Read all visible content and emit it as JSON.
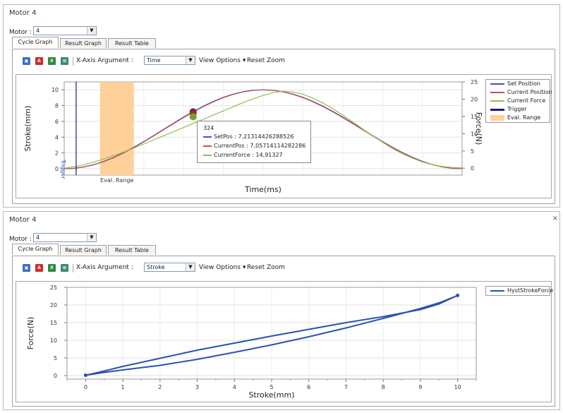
{
  "panel1": {
    "title": "Motor 4",
    "motor_label": "Motor :",
    "motor_value": "4",
    "tabs": [
      "Cycle Graph",
      "Result Graph",
      "Result Table"
    ],
    "xaxis_label": "X-Axis Argument :",
    "xaxis_value": "Time",
    "view_options": "View Options",
    "reset_zoom": "Reset Zoom",
    "legend": [
      "Set Position",
      "Current Position",
      "Current Force",
      "Trigger",
      "Eval. Range"
    ],
    "tooltip": {
      "header": "324",
      "rows": [
        "SetPos : 7,21314426288526",
        "CurrentPos : 7,05714114282286",
        "CurrentForce : 14,91327"
      ]
    }
  },
  "panel2": {
    "title": "Motor 4",
    "close": "×",
    "motor_label": "Motor :",
    "motor_value": "4",
    "tabs": [
      "Cycle Graph",
      "Result Graph",
      "Result Table"
    ],
    "xaxis_label": "X-Axis Argument :",
    "xaxis_value": "Stroke",
    "view_options": "View Options",
    "reset_zoom": "Reset Zoom",
    "legend": [
      "HystStrokeForce"
    ]
  },
  "toolbar_icons": [
    "save-icon",
    "pdf-icon",
    "excel-icon",
    "export-icon"
  ],
  "colors": {
    "set_position": "#3a56b8",
    "current_position": "#c0505a",
    "current_force": "#8fc04a",
    "trigger": "#1a1a78",
    "eval_range": "#ffd09a",
    "hyst": "#2a52b0"
  },
  "chart_data": [
    {
      "type": "line",
      "xlabel": "Time(ms)",
      "ylabel": "Stroke(mm)",
      "y2label": "Force(N)",
      "ylim": [
        -0.8,
        11
      ],
      "y2lim": [
        -2,
        25
      ],
      "yticks": [
        0,
        2,
        4,
        6,
        8,
        10
      ],
      "y2ticks": [
        0,
        5,
        10,
        15,
        20,
        25
      ],
      "trigger_label": "Trigger",
      "eval_range_label": "Eval. Range",
      "grid": true,
      "legend_position": "right",
      "series": [
        {
          "name": "Set Position",
          "x": [
            0,
            25,
            50,
            75,
            100,
            125,
            150,
            175,
            200,
            225,
            250,
            275,
            300,
            325,
            350,
            375,
            400,
            425,
            450,
            475,
            500
          ],
          "y": [
            0,
            0.06,
            0.24,
            0.54,
            0.95,
            1.46,
            2.06,
            2.73,
            3.45,
            4.22,
            5.0,
            5.78,
            6.55,
            7.27,
            7.94,
            8.54,
            9.05,
            9.46,
            9.76,
            9.94,
            10.0
          ]
        },
        {
          "name": "Current Position",
          "x": [
            0,
            25,
            50,
            75,
            100,
            125,
            150,
            175,
            200,
            225,
            250,
            275,
            300,
            325,
            350,
            375,
            400,
            425,
            450,
            475,
            500
          ],
          "y": [
            0,
            0.05,
            0.22,
            0.51,
            0.91,
            1.42,
            2.01,
            2.68,
            3.4,
            4.16,
            4.94,
            5.72,
            6.48,
            7.2,
            7.87,
            8.48,
            9.0,
            9.42,
            9.73,
            9.92,
            9.99
          ]
        },
        {
          "name": "Current Force",
          "x": [
            0,
            25,
            50,
            75,
            100,
            125,
            150,
            175,
            200,
            225,
            250,
            275,
            300,
            325,
            350,
            375,
            400,
            425,
            450,
            475,
            500,
            525,
            550,
            575,
            600,
            625,
            650,
            675,
            700,
            725,
            750,
            775,
            800,
            825,
            850,
            875,
            900,
            925,
            950,
            975,
            1000
          ],
          "y": [
            0,
            0.4,
            1.0,
            1.8,
            2.7,
            3.7,
            4.7,
            5.8,
            7.0,
            8.2,
            9.4,
            10.6,
            11.8,
            13.0,
            14.2,
            15.4,
            16.6,
            17.8,
            19.0,
            20.1,
            21.1,
            21.9,
            22.3,
            22.1,
            21.4,
            20.3,
            18.9,
            17.2,
            15.4,
            13.4,
            11.4,
            9.4,
            7.5,
            5.7,
            4.2,
            2.9,
            1.8,
            1.0,
            0.5,
            0.2,
            0.1
          ]
        }
      ]
    },
    {
      "type": "line",
      "xlabel": "Stroke(mm)",
      "ylabel": "Force(N)",
      "xlim": [
        -0.5,
        10.5
      ],
      "ylim": [
        -1,
        25
      ],
      "xticks": [
        0,
        1,
        2,
        3,
        4,
        5,
        6,
        7,
        8,
        9,
        10
      ],
      "yticks": [
        0,
        5,
        10,
        15,
        20,
        25
      ],
      "grid": true,
      "legend_position": "right",
      "series": [
        {
          "name": "HystStrokeForce",
          "up": {
            "x": [
              0,
              0.5,
              1,
              2,
              3,
              4,
              5,
              6,
              7,
              8,
              9,
              9.5,
              10
            ],
            "y": [
              0.1,
              1.3,
              2.6,
              4.9,
              7.2,
              9.2,
              11.2,
              13.1,
              15.0,
              16.7,
              18.7,
              20.3,
              22.7
            ]
          },
          "down": {
            "x": [
              10,
              9.5,
              9,
              8,
              7,
              6,
              5,
              4,
              3,
              2,
              1,
              0.5,
              0
            ],
            "y": [
              22.7,
              20.6,
              19.0,
              16.2,
              13.5,
              11.0,
              8.7,
              6.6,
              4.6,
              2.9,
              1.6,
              0.9,
              0.1
            ]
          }
        }
      ]
    }
  ]
}
